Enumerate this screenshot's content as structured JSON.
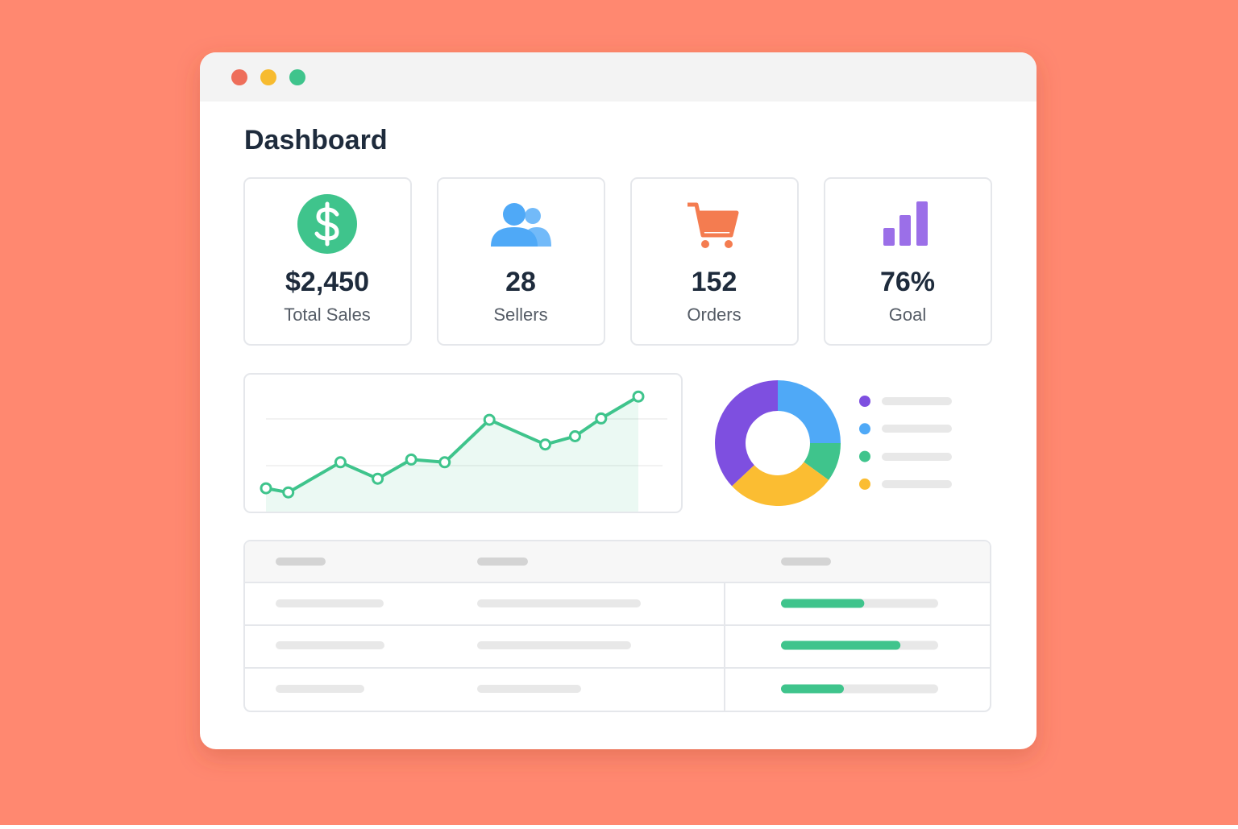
{
  "window": {
    "title": "Dashboard"
  },
  "stats": [
    {
      "value": "$2,450",
      "label": "Total Sales"
    },
    {
      "value": "28",
      "label": "Sellers"
    },
    {
      "value": "152",
      "label": "Orders"
    },
    {
      "value": "76%",
      "label": "Goal"
    }
  ],
  "chart_data": [
    {
      "type": "line",
      "x": [
        0,
        6,
        20,
        30,
        39,
        48,
        60,
        75,
        83,
        90,
        100
      ],
      "values": [
        17,
        14,
        36,
        24,
        38,
        36,
        67,
        49,
        55,
        68,
        84
      ],
      "xlim": [
        0,
        100
      ],
      "ylim": [
        0,
        100
      ],
      "color": "#3fc48c"
    },
    {
      "type": "pie",
      "values": [
        37,
        25,
        10,
        28
      ],
      "colors": [
        "#7e4fe0",
        "#4fa9f7",
        "#3fc48c",
        "#fbbd32"
      ]
    }
  ],
  "table": {
    "progress": {
      "values": [
        53,
        76,
        40
      ],
      "color": "#3fc48c"
    }
  }
}
